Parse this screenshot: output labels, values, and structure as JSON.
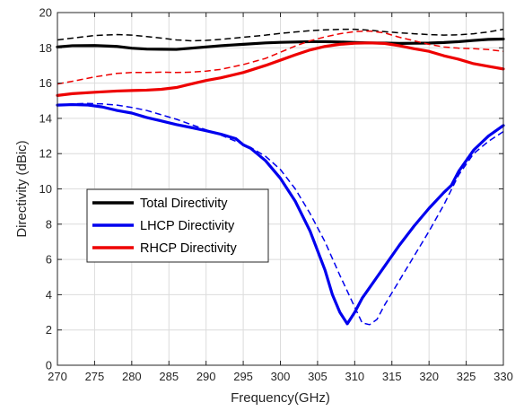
{
  "chart_data": {
    "type": "line",
    "xlabel": "Frequency(GHz)",
    "ylabel": "Directivity (dBic)",
    "xlim": [
      270,
      330
    ],
    "ylim": [
      0,
      20
    ],
    "xticks": [
      270,
      275,
      280,
      285,
      290,
      295,
      300,
      305,
      310,
      315,
      320,
      325,
      330
    ],
    "yticks": [
      0,
      2,
      4,
      6,
      8,
      10,
      12,
      14,
      16,
      18,
      20
    ],
    "grid": true,
    "legend_position": "center-left",
    "legend": [
      "Total Directivity",
      "LHCP Directivity",
      "RHCP Directivity"
    ],
    "series": [
      {
        "name": "Total Directivity",
        "color": "#000000",
        "style": "solid",
        "x": [
          270,
          272,
          275,
          278,
          280,
          282,
          284,
          286,
          288,
          290,
          292,
          295,
          298,
          300,
          302,
          304,
          306,
          308,
          310,
          312,
          314,
          316,
          318,
          320,
          322,
          324,
          326,
          328,
          330
        ],
        "y": [
          18.05,
          18.12,
          18.13,
          18.08,
          17.98,
          17.93,
          17.92,
          17.91,
          17.98,
          18.05,
          18.12,
          18.2,
          18.28,
          18.31,
          18.33,
          18.35,
          18.35,
          18.33,
          18.3,
          18.28,
          18.27,
          18.25,
          18.26,
          18.27,
          18.3,
          18.35,
          18.42,
          18.48,
          18.5
        ]
      },
      {
        "name": "",
        "color": "#000000",
        "style": "dashed",
        "x": [
          270,
          272,
          275,
          278,
          280,
          282,
          284,
          286,
          288,
          290,
          292,
          295,
          298,
          300,
          302,
          304,
          306,
          308,
          310,
          312,
          314,
          316,
          318,
          320,
          322,
          324,
          326,
          328,
          330
        ],
        "y": [
          18.45,
          18.55,
          18.7,
          18.75,
          18.72,
          18.64,
          18.55,
          18.45,
          18.4,
          18.42,
          18.48,
          18.6,
          18.72,
          18.82,
          18.9,
          18.97,
          19.02,
          19.05,
          19.05,
          19.0,
          18.92,
          18.85,
          18.8,
          18.75,
          18.72,
          18.74,
          18.8,
          18.9,
          19.05
        ]
      },
      {
        "name": "LHCP Directivity",
        "color": "#0000ee",
        "style": "solid",
        "x": [
          270,
          272,
          274,
          276,
          278,
          280,
          282,
          284,
          286,
          288,
          290,
          292,
          294,
          295,
          296,
          298,
          300,
          302,
          304,
          305,
          306,
          307,
          308,
          309,
          310,
          311,
          312,
          313,
          314,
          316,
          318,
          320,
          322,
          323,
          324,
          326,
          328,
          330
        ],
        "y": [
          14.75,
          14.78,
          14.76,
          14.65,
          14.45,
          14.3,
          14.05,
          13.85,
          13.65,
          13.48,
          13.3,
          13.1,
          12.85,
          12.5,
          12.3,
          11.6,
          10.6,
          9.3,
          7.6,
          6.5,
          5.4,
          4.0,
          3.0,
          2.35,
          3.0,
          3.8,
          4.4,
          5.0,
          5.6,
          6.8,
          7.9,
          8.9,
          9.8,
          10.2,
          11.0,
          12.2,
          13.0,
          13.6
        ]
      },
      {
        "name": "",
        "color": "#0000ee",
        "style": "dashed",
        "x": [
          270,
          272,
          274,
          276,
          278,
          280,
          282,
          284,
          286,
          288,
          290,
          292,
          294,
          296,
          298,
          300,
          302,
          304,
          306,
          308,
          310,
          311,
          312,
          313,
          314,
          316,
          318,
          320,
          322,
          324,
          326,
          328,
          330
        ],
        "y": [
          14.75,
          14.82,
          14.85,
          14.82,
          14.75,
          14.62,
          14.45,
          14.2,
          13.95,
          13.65,
          13.35,
          13.05,
          12.7,
          12.35,
          11.85,
          11.1,
          10.0,
          8.6,
          7.0,
          5.1,
          3.3,
          2.4,
          2.3,
          2.6,
          3.4,
          4.8,
          6.2,
          7.6,
          9.1,
          10.8,
          12.0,
          12.7,
          13.25
        ]
      },
      {
        "name": "RHCP Directivity",
        "color": "#ee0000",
        "style": "solid",
        "x": [
          270,
          272,
          275,
          278,
          280,
          282,
          284,
          286,
          288,
          290,
          292,
          295,
          298,
          300,
          302,
          304,
          306,
          308,
          310,
          312,
          314,
          316,
          318,
          320,
          322,
          324,
          326,
          328,
          330
        ],
        "y": [
          15.3,
          15.4,
          15.48,
          15.55,
          15.58,
          15.6,
          15.65,
          15.75,
          15.95,
          16.15,
          16.3,
          16.6,
          17.0,
          17.3,
          17.6,
          17.88,
          18.08,
          18.2,
          18.26,
          18.28,
          18.25,
          18.12,
          17.95,
          17.8,
          17.55,
          17.35,
          17.1,
          16.95,
          16.8
        ]
      },
      {
        "name": "",
        "color": "#ee0000",
        "style": "dashed",
        "x": [
          270,
          272,
          275,
          278,
          280,
          282,
          284,
          286,
          288,
          290,
          292,
          295,
          298,
          300,
          302,
          304,
          306,
          308,
          310,
          312,
          314,
          316,
          318,
          320,
          322,
          324,
          326,
          328,
          330
        ],
        "y": [
          15.95,
          16.1,
          16.35,
          16.55,
          16.6,
          16.6,
          16.62,
          16.6,
          16.62,
          16.68,
          16.78,
          17.05,
          17.4,
          17.75,
          18.1,
          18.4,
          18.62,
          18.8,
          18.92,
          18.95,
          18.85,
          18.6,
          18.4,
          18.2,
          18.05,
          17.98,
          17.95,
          17.9,
          17.8
        ]
      }
    ]
  }
}
